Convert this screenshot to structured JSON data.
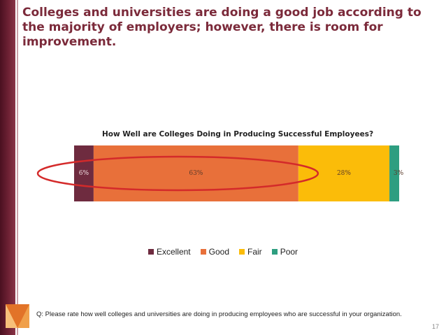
{
  "slide": {
    "title": "Colleges and universities are doing a good job according to the majority of employers; however, there is room for improvement.",
    "question": "Q: Please rate how well colleges and universities are doing in producing employees who are successful in your organization.",
    "page_number": "17"
  },
  "chart_data": {
    "type": "bar",
    "orientation": "horizontal-stacked-100",
    "title": "How Well are Colleges Doing in Producing Successful Employees?",
    "categories": [
      ""
    ],
    "series": [
      {
        "name": "Excellent",
        "values": [
          6
        ],
        "label": "6%",
        "color": "#6e2b3f"
      },
      {
        "name": "Good",
        "values": [
          63
        ],
        "label": "63%",
        "color": "#e8703a"
      },
      {
        "name": "Fair",
        "values": [
          28
        ],
        "label": "28%",
        "color": "#fbbc09"
      },
      {
        "name": "Poor",
        "values": [
          3
        ],
        "label": "3%",
        "color": "#2e9e80"
      }
    ],
    "xlim": [
      0,
      100
    ],
    "legend_position": "bottom",
    "grid": false,
    "annotation": {
      "shape": "ellipse",
      "color": "#d42a2a",
      "encircles": [
        "Excellent",
        "Good"
      ]
    }
  }
}
